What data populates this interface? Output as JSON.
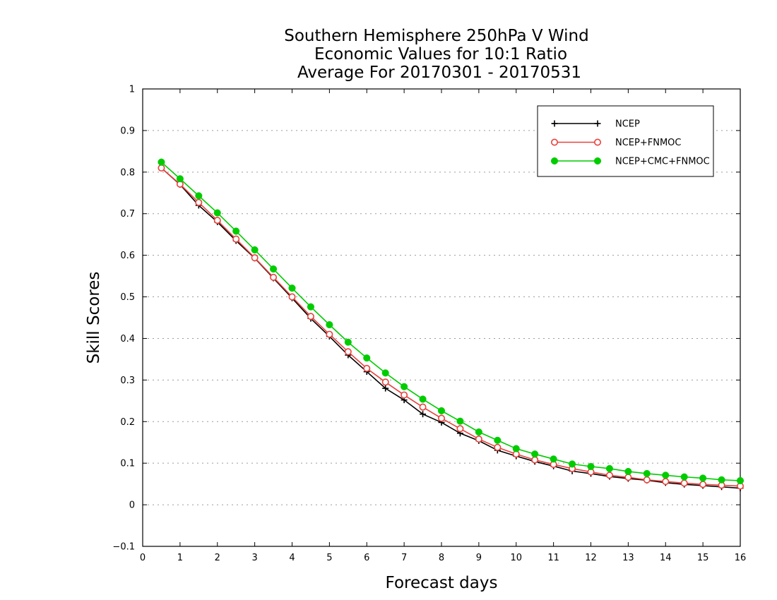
{
  "chart_data": {
    "type": "line",
    "title": [
      "Southern Hemisphere 250hPa V Wind",
      "Economic Values for 10:1 Ratio",
      "Average For 20170301 - 20170531"
    ],
    "xlabel": "Forecast days",
    "ylabel": "Skill Scores",
    "xlim": [
      0,
      16
    ],
    "ylim": [
      -0.1,
      1
    ],
    "x_ticks": [
      "0",
      "1",
      "2",
      "3",
      "4",
      "5",
      "6",
      "7",
      "8",
      "9",
      "10",
      "11",
      "12",
      "13",
      "14",
      "15",
      "16"
    ],
    "y_ticks": [
      "−0.1",
      "0",
      "0.1",
      "0.2",
      "0.3",
      "0.4",
      "0.5",
      "0.6",
      "0.7",
      "0.8",
      "0.9",
      "1"
    ],
    "grid": true,
    "legend_position": "top-right",
    "x": [
      0.5,
      1,
      1.5,
      2,
      2.5,
      3,
      3.5,
      4,
      4.5,
      5,
      5.5,
      6,
      6.5,
      7,
      7.5,
      8,
      8.5,
      9,
      9.5,
      10,
      10.5,
      11,
      11.5,
      12,
      12.5,
      13,
      13.5,
      14,
      14.5,
      15,
      15.5,
      16
    ],
    "series": [
      {
        "name": "NCEP",
        "color": "#000000",
        "marker": "plus",
        "values": [
          0.81,
          0.77,
          0.72,
          0.68,
          0.635,
          0.593,
          0.545,
          0.497,
          0.448,
          0.405,
          0.36,
          0.32,
          0.28,
          0.252,
          0.218,
          0.198,
          0.172,
          0.154,
          0.131,
          0.117,
          0.104,
          0.093,
          0.081,
          0.075,
          0.068,
          0.063,
          0.059,
          0.053,
          0.049,
          0.046,
          0.043,
          0.04
        ]
      },
      {
        "name": "NCEP+FNMOC",
        "color": "#e8413c",
        "marker": "open-circle",
        "values": [
          0.81,
          0.771,
          0.727,
          0.684,
          0.639,
          0.594,
          0.547,
          0.5,
          0.453,
          0.41,
          0.368,
          0.328,
          0.295,
          0.264,
          0.235,
          0.208,
          0.183,
          0.158,
          0.138,
          0.122,
          0.108,
          0.097,
          0.087,
          0.079,
          0.071,
          0.066,
          0.06,
          0.056,
          0.052,
          0.049,
          0.047,
          0.045
        ]
      },
      {
        "name": "NCEP+CMC+FNMOC",
        "color": "#00cc00",
        "marker": "filled-circle",
        "values": [
          0.824,
          0.784,
          0.743,
          0.702,
          0.658,
          0.613,
          0.567,
          0.521,
          0.476,
          0.433,
          0.391,
          0.353,
          0.317,
          0.284,
          0.254,
          0.226,
          0.201,
          0.175,
          0.155,
          0.135,
          0.122,
          0.11,
          0.098,
          0.092,
          0.087,
          0.08,
          0.075,
          0.071,
          0.067,
          0.064,
          0.06,
          0.058
        ]
      }
    ]
  }
}
